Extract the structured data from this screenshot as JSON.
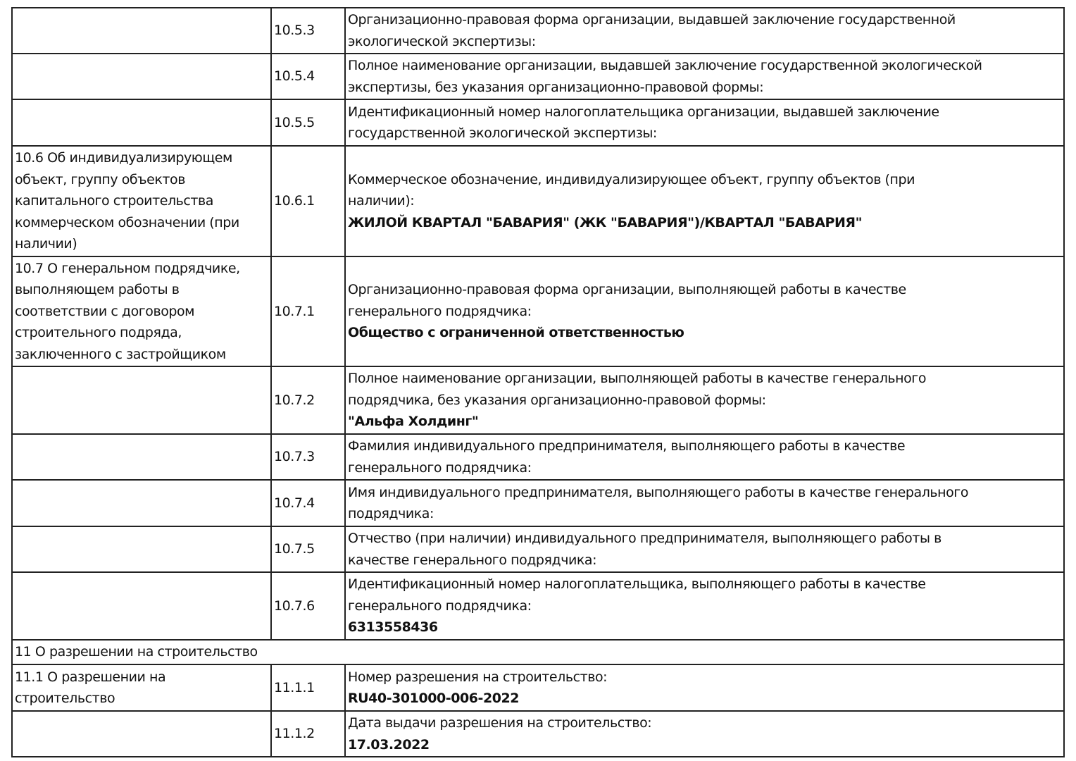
{
  "rows": [
    {
      "section": [],
      "code": "10.5.3",
      "label": [
        "Организационно-правовая форма организации, выдавшей заключение государственной",
        "экологической экспертизы:"
      ],
      "value": []
    },
    {
      "section": [],
      "code": "10.5.4",
      "label": [
        "Полное наименование организации, выдавшей заключение государственной экологической",
        "экспертизы, без указания организационно-правовой формы:"
      ],
      "value": []
    },
    {
      "section": [],
      "code": "10.5.5",
      "label": [
        "Идентификационный номер налогоплательщика организации, выдавшей заключение",
        "государственной экологической экспертизы:"
      ],
      "value": []
    },
    {
      "section": [
        "10.6 Об индивидуализирующем",
        "объект, группу объектов",
        "капитального строительства",
        "коммерческом обозначении (при",
        "наличии)"
      ],
      "code": "10.6.1",
      "label": [
        "Коммерческое обозначение, индивидуализирующее объект, группу объектов (при",
        "наличии):"
      ],
      "value": [
        "ЖИЛОЙ КВАРТАЛ \"БАВАРИЯ\" (ЖК \"БАВАРИЯ\")/КВАРТАЛ \"БАВАРИЯ\""
      ]
    },
    {
      "section": [
        "10.7 О генеральном подрядчике,",
        "выполняющем работы в",
        "соответствии с договором",
        "строительного подряда,",
        "заключенного с застройщиком"
      ],
      "code": "10.7.1",
      "label": [
        "Организационно-правовая форма организации, выполняющей работы в качестве",
        "генерального подрядчика:"
      ],
      "value": [
        "Общество с ограниченной ответственностью"
      ]
    },
    {
      "section": [],
      "code": "10.7.2",
      "label": [
        "Полное наименование организации, выполняющей работы в качестве генерального",
        "подрядчика, без указания организационно-правовой формы:"
      ],
      "value": [
        "\"Альфа Холдинг\""
      ]
    },
    {
      "section": [],
      "code": "10.7.3",
      "label": [
        "Фамилия индивидуального предпринимателя, выполняющего работы в качестве",
        "генерального подрядчика:"
      ],
      "value": []
    },
    {
      "section": [],
      "code": "10.7.4",
      "label": [
        "Имя индивидуального предпринимателя, выполняющего работы в качестве генерального",
        "подрядчика:"
      ],
      "value": []
    },
    {
      "section": [],
      "code": "10.7.5",
      "label": [
        "Отчество (при наличии) индивидуального предпринимателя, выполняющего работы в",
        "качестве генерального подрядчика:"
      ],
      "value": []
    },
    {
      "section": [],
      "code": "10.7.6",
      "label": [
        "Идентификационный номер налогоплательщика, выполняющего работы в качестве",
        "генерального подрядчика:"
      ],
      "value": [
        "6313558436"
      ]
    },
    {
      "heading": "11 О разрешении на строительство"
    },
    {
      "section": [
        "11.1 О разрешении на",
        "строительство"
      ],
      "code": "11.1.1",
      "label": [
        "Номер разрешения на строительство:"
      ],
      "value": [
        "RU40-301000-006-2022"
      ]
    },
    {
      "section": [],
      "code": "11.1.2",
      "label": [
        "Дата выдачи разрешения на строительство:"
      ],
      "value": [
        "17.03.2022"
      ]
    }
  ]
}
